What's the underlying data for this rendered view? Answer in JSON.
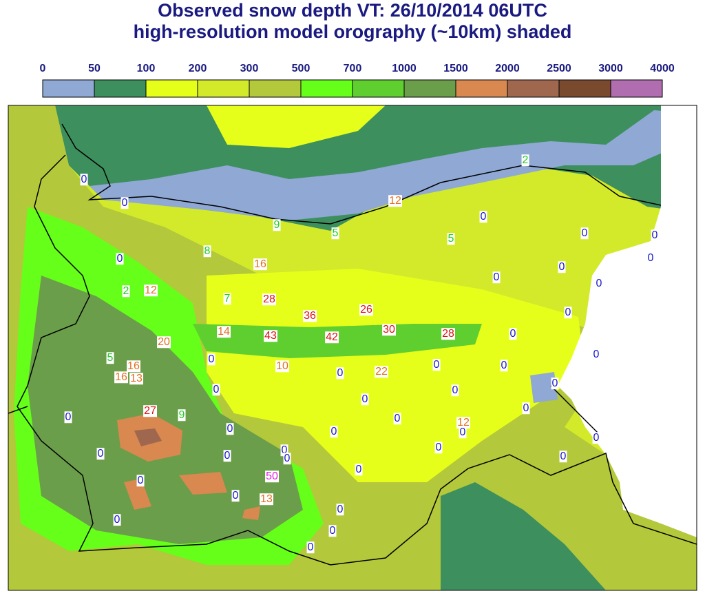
{
  "title": [
    "Observed snow depth VT: 26/10/2014 06UTC",
    "high-resolution model orography (~10km) shaded"
  ],
  "legend": {
    "labels": [
      0,
      50,
      100,
      200,
      300,
      500,
      700,
      1000,
      1500,
      2000,
      2500,
      3000,
      4000
    ],
    "colors": [
      "#8fa8d4",
      "#3d8f5e",
      "#e6ff1a",
      "#d2ea2a",
      "#b3c83a",
      "#66ff1a",
      "#5fcf2f",
      "#6b9e4a",
      "#d9884f",
      "#a0674f",
      "#7a4a2e",
      "#b06db0"
    ]
  },
  "stations": [
    {
      "value": 2,
      "color": "#22cc22"
    },
    {
      "value": 0,
      "color": "#1a1acc"
    },
    {
      "value": 0,
      "color": "#1a1acc"
    },
    {
      "value": 12,
      "color": "#e07020"
    },
    {
      "value": 0,
      "color": "#1a1acc"
    },
    {
      "value": 9,
      "color": "#22cc22"
    },
    {
      "value": 5,
      "color": "#22cc22"
    },
    {
      "value": 5,
      "color": "#22cc22"
    },
    {
      "value": 0,
      "color": "#1a1acc"
    },
    {
      "value": 0,
      "color": "#1a1acc"
    },
    {
      "value": 8,
      "color": "#22cc22"
    },
    {
      "value": 0,
      "color": "#1a1acc"
    },
    {
      "value": 16,
      "color": "#e07020"
    },
    {
      "value": 0,
      "color": "#1a1acc"
    },
    {
      "value": 0,
      "color": "#1a1acc"
    },
    {
      "value": 0,
      "color": "#1a1acc"
    },
    {
      "value": 0,
      "color": "#1a1acc"
    },
    {
      "value": 2,
      "color": "#22cc22"
    },
    {
      "value": 12,
      "color": "#e07020"
    },
    {
      "value": 7,
      "color": "#22cc22"
    },
    {
      "value": 28,
      "color": "#dd1111"
    },
    {
      "value": 26,
      "color": "#dd1111"
    },
    {
      "value": 36,
      "color": "#dd1111"
    },
    {
      "value": 0,
      "color": "#1a1acc"
    },
    {
      "value": 30,
      "color": "#dd1111"
    },
    {
      "value": 28,
      "color": "#dd1111"
    },
    {
      "value": 14,
      "color": "#e07020"
    },
    {
      "value": 43,
      "color": "#dd1111"
    },
    {
      "value": 42,
      "color": "#dd1111"
    },
    {
      "value": 0,
      "color": "#1a1acc"
    },
    {
      "value": 20,
      "color": "#e07020"
    },
    {
      "value": 5,
      "color": "#22cc22"
    },
    {
      "value": 0,
      "color": "#1a1acc"
    },
    {
      "value": 0,
      "color": "#1a1acc"
    },
    {
      "value": 16,
      "color": "#e07020"
    },
    {
      "value": 10,
      "color": "#e07020"
    },
    {
      "value": 0,
      "color": "#1a1acc"
    },
    {
      "value": 0,
      "color": "#1a1acc"
    },
    {
      "value": 16,
      "color": "#e07020"
    },
    {
      "value": 13,
      "color": "#e07020"
    },
    {
      "value": 0,
      "color": "#1a1acc"
    },
    {
      "value": 22,
      "color": "#e07020"
    },
    {
      "value": 0,
      "color": "#1a1acc"
    },
    {
      "value": 0,
      "color": "#1a1acc"
    },
    {
      "value": 0,
      "color": "#1a1acc"
    },
    {
      "value": 0,
      "color": "#1a1acc"
    },
    {
      "value": 0,
      "color": "#1a1acc"
    },
    {
      "value": 27,
      "color": "#dd1111"
    },
    {
      "value": 9,
      "color": "#22cc22"
    },
    {
      "value": 0,
      "color": "#1a1acc"
    },
    {
      "value": 0,
      "color": "#1a1acc"
    },
    {
      "value": 12,
      "color": "#e07020"
    },
    {
      "value": 0,
      "color": "#1a1acc"
    },
    {
      "value": 0,
      "color": "#1a1acc"
    },
    {
      "value": 0,
      "color": "#1a1acc"
    },
    {
      "value": 0,
      "color": "#1a1acc"
    },
    {
      "value": 0,
      "color": "#1a1acc"
    },
    {
      "value": 0,
      "color": "#1a1acc"
    },
    {
      "value": 0,
      "color": "#1a1acc"
    },
    {
      "value": 0,
      "color": "#1a1acc"
    },
    {
      "value": 0,
      "color": "#1a1acc"
    },
    {
      "value": 0,
      "color": "#1a1acc"
    },
    {
      "value": 50,
      "color": "#e020e0"
    },
    {
      "value": 0,
      "color": "#1a1acc"
    },
    {
      "value": 0,
      "color": "#1a1acc"
    },
    {
      "value": 0,
      "color": "#1a1acc"
    },
    {
      "value": 13,
      "color": "#e07020"
    },
    {
      "value": 0,
      "color": "#1a1acc"
    },
    {
      "value": 0,
      "color": "#1a1acc"
    },
    {
      "value": 0,
      "color": "#1a1acc"
    },
    {
      "value": 0,
      "color": "#1a1acc"
    }
  ]
}
